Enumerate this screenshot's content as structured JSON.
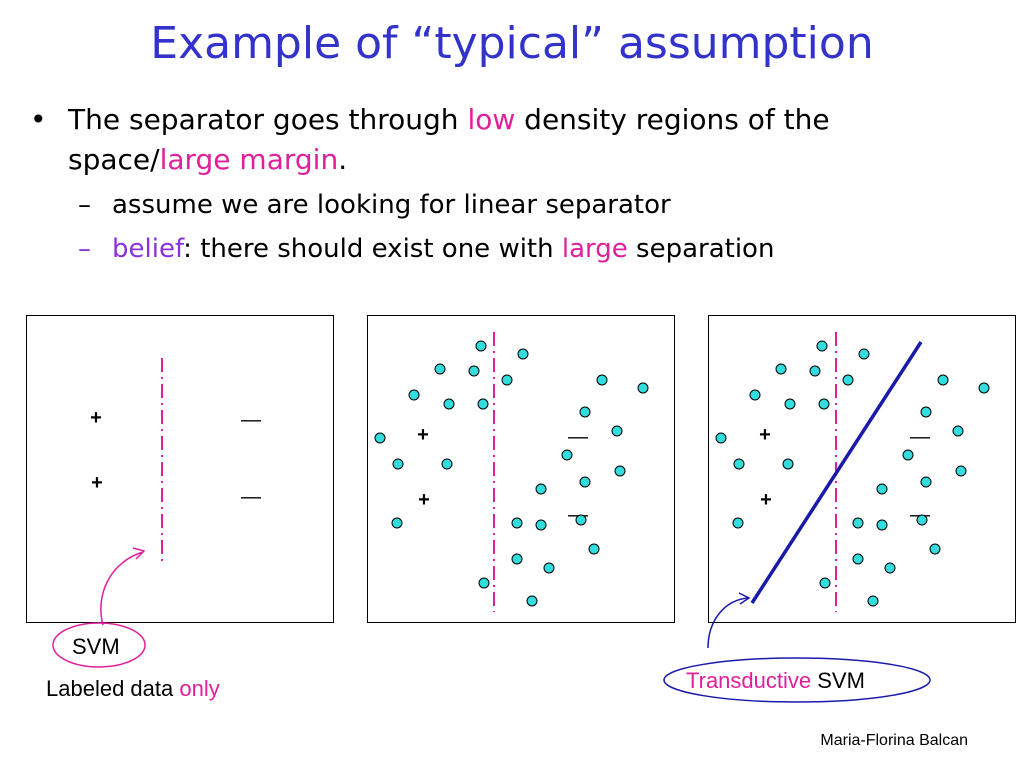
{
  "title": "Example of “typical” assumption",
  "bullet": {
    "marker": "•",
    "text_a": "The separator goes through ",
    "low": "low",
    "text_b": " density regions of the",
    "text_c": "space/",
    "large_margin": "large margin",
    "text_d": "."
  },
  "sub1": {
    "dash": "–",
    "text": "assume we are looking for linear separator"
  },
  "sub2": {
    "dash": "–",
    "belief": "belief",
    "text_a": ": there should exist one with ",
    "large": "large",
    "text_b": " separation"
  },
  "labels": {
    "svm": "SVM",
    "labeled_a": "Labeled data ",
    "labeled_only": "only",
    "transductive": "Transductive",
    "svm2": " SVM",
    "credit": "Maria-Florina Balcan"
  },
  "symbols": {
    "plus": "+",
    "minus": "—"
  },
  "colors": {
    "title": "#3333cc",
    "pink": "#e0209a",
    "violet": "#8833dd",
    "point": "#33dddd",
    "separator": "#1a1aaa"
  }
}
